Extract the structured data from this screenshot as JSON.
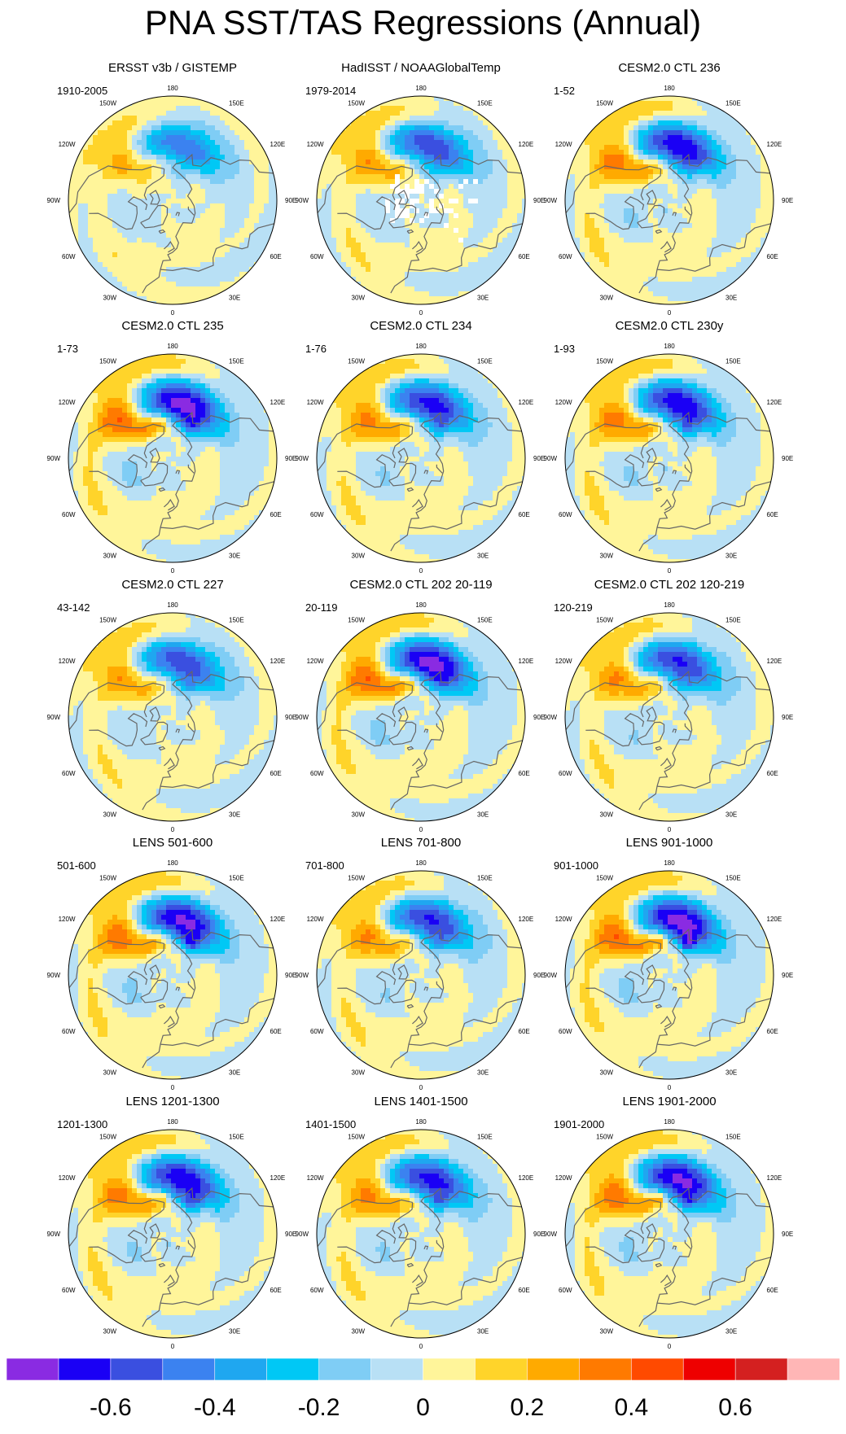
{
  "title": "PNA SST/TAS Regressions (Annual)",
  "map_labels": {
    "top": "180",
    "bottom": "0",
    "left_upper": "120W",
    "left_mid": "90W",
    "left_lower": "60W",
    "right_upper": "120E",
    "right_mid": "90E",
    "right_lower": "60E",
    "top_left": "150W",
    "top_right": "150E",
    "bottom_left": "30W",
    "bottom_right": "30E"
  },
  "chart_data": {
    "type": "heatmap",
    "projection": "north-polar-stereographic",
    "panels": [
      {
        "title": "ERSST v3b / GISTEMP",
        "period": "1910-2005",
        "scale": 0.7,
        "spotcold": 0,
        "spotwarm": 0,
        "masked": false
      },
      {
        "title": "HadISST / NOAAGlobalTemp",
        "period": "1979-2014",
        "scale": 0.85,
        "spotcold": 0,
        "spotwarm": 0,
        "masked": true
      },
      {
        "title": "CESM2.0 CTL 236",
        "period": "1-52",
        "scale": 1.0,
        "spotcold": 0.1,
        "spotwarm": 0.2,
        "masked": false
      },
      {
        "title": "CESM2.0 CTL 235",
        "period": "1-73",
        "scale": 1.1,
        "spotcold": 0.5,
        "spotwarm": 0.5,
        "masked": false
      },
      {
        "title": "CESM2.0 CTL 234",
        "period": "1-76",
        "scale": 0.95,
        "spotcold": 0.4,
        "spotwarm": 0.2,
        "masked": false
      },
      {
        "title": "CESM2.0 CTL 230y",
        "period": "1-93",
        "scale": 1.0,
        "spotcold": 0.5,
        "spotwarm": 0,
        "masked": false
      },
      {
        "title": "CESM2.0 CTL 227",
        "period": "43-142",
        "scale": 0.85,
        "spotcold": 0.5,
        "spotwarm": 0.1,
        "masked": false
      },
      {
        "title": "CESM2.0 CTL 202 20-119",
        "period": "20-119",
        "scale": 1.1,
        "spotcold": 0.2,
        "spotwarm": 0.2,
        "masked": false
      },
      {
        "title": "CESM2.0 CTL 202 120-219",
        "period": "120-219",
        "scale": 0.9,
        "spotcold": 0.2,
        "spotwarm": 0.4,
        "masked": false
      },
      {
        "title": "LENS 501-600",
        "period": "501-600",
        "scale": 1.05,
        "spotcold": 0.8,
        "spotwarm": 0.2,
        "masked": false
      },
      {
        "title": "LENS 701-800",
        "period": "701-800",
        "scale": 0.9,
        "spotcold": 0.4,
        "spotwarm": 0.3,
        "masked": false
      },
      {
        "title": "LENS 901-1000",
        "period": "901-1000",
        "scale": 1.1,
        "spotcold": 0.8,
        "spotwarm": 0.6,
        "masked": false
      },
      {
        "title": "LENS 1201-1300",
        "period": "1201-1300",
        "scale": 1.0,
        "spotcold": 0.6,
        "spotwarm": 0.6,
        "masked": false
      },
      {
        "title": "LENS 1401-1500",
        "period": "1401-1500",
        "scale": 0.95,
        "spotcold": 0.5,
        "spotwarm": 0.3,
        "masked": false
      },
      {
        "title": "LENS 1901-2000",
        "period": "1901-2000",
        "scale": 1.05,
        "spotcold": 0.5,
        "spotwarm": 0.6,
        "masked": false
      }
    ],
    "colorbar": {
      "levels": [
        -0.7,
        -0.6,
        -0.5,
        -0.4,
        -0.3,
        -0.2,
        -0.1,
        0,
        0.1,
        0.2,
        0.3,
        0.4,
        0.5,
        0.6,
        0.7
      ],
      "colors": [
        "#8a2be2",
        "#1a00f5",
        "#3a4fe0",
        "#3b82f0",
        "#1fa7f0",
        "#00c8f5",
        "#7fcdf5",
        "#b8e0f5",
        "#fff59a",
        "#ffd42a",
        "#ffaa00",
        "#ff7a00",
        "#ff4a00",
        "#ee0000",
        "#d42020",
        "#ffb6b6"
      ],
      "tick_labels": [
        "-0.6",
        "-0.4",
        "-0.2",
        "0",
        "0.2",
        "0.4",
        "0.6"
      ],
      "tick_values": [
        -0.6,
        -0.4,
        -0.2,
        0,
        0.2,
        0.4,
        0.6
      ]
    }
  }
}
